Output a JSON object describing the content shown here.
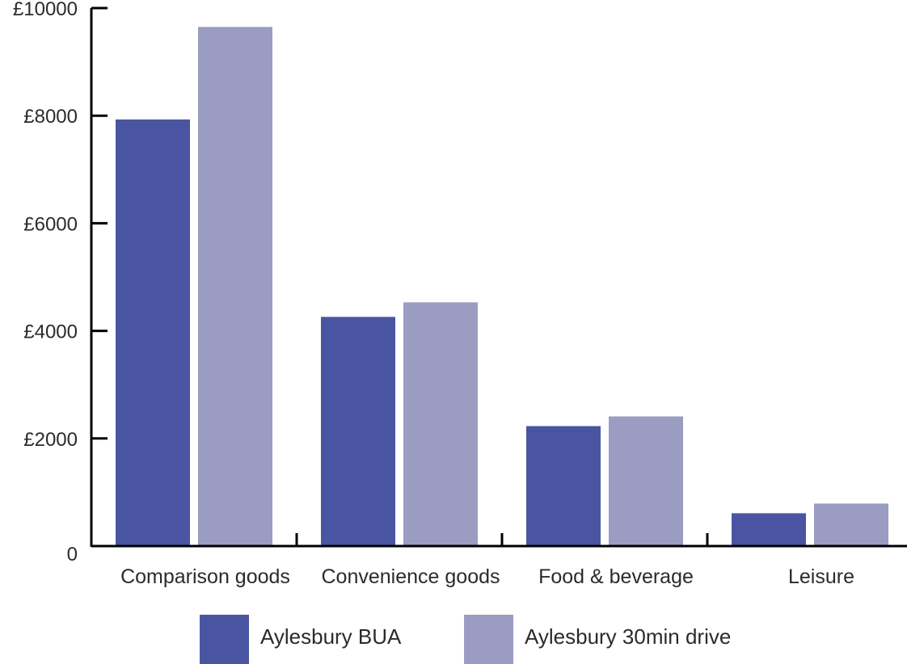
{
  "chart_data": {
    "type": "bar",
    "categories": [
      "Comparison goods",
      "Convenience goods",
      "Food & beverage",
      "Leisure"
    ],
    "series": [
      {
        "name": "Aylesbury BUA",
        "color": "#4a55a2",
        "values": [
          7930,
          4260,
          2230,
          610
        ]
      },
      {
        "name": "Aylesbury 30min drive",
        "color": "#9a9dc1",
        "values": [
          9650,
          4530,
          2410,
          790
        ]
      }
    ],
    "y_ticks": [
      {
        "value": 0,
        "label": "0"
      },
      {
        "value": 2000,
        "label": "£2000"
      },
      {
        "value": 4000,
        "label": "£4000"
      },
      {
        "value": 6000,
        "label": "£6000"
      },
      {
        "value": 8000,
        "label": "£8000"
      },
      {
        "value": 10000,
        "label": "£10000"
      }
    ],
    "ylim": [
      0,
      10000
    ],
    "title": "",
    "xlabel": "",
    "ylabel": "",
    "grid": false,
    "legend_position": "bottom"
  }
}
